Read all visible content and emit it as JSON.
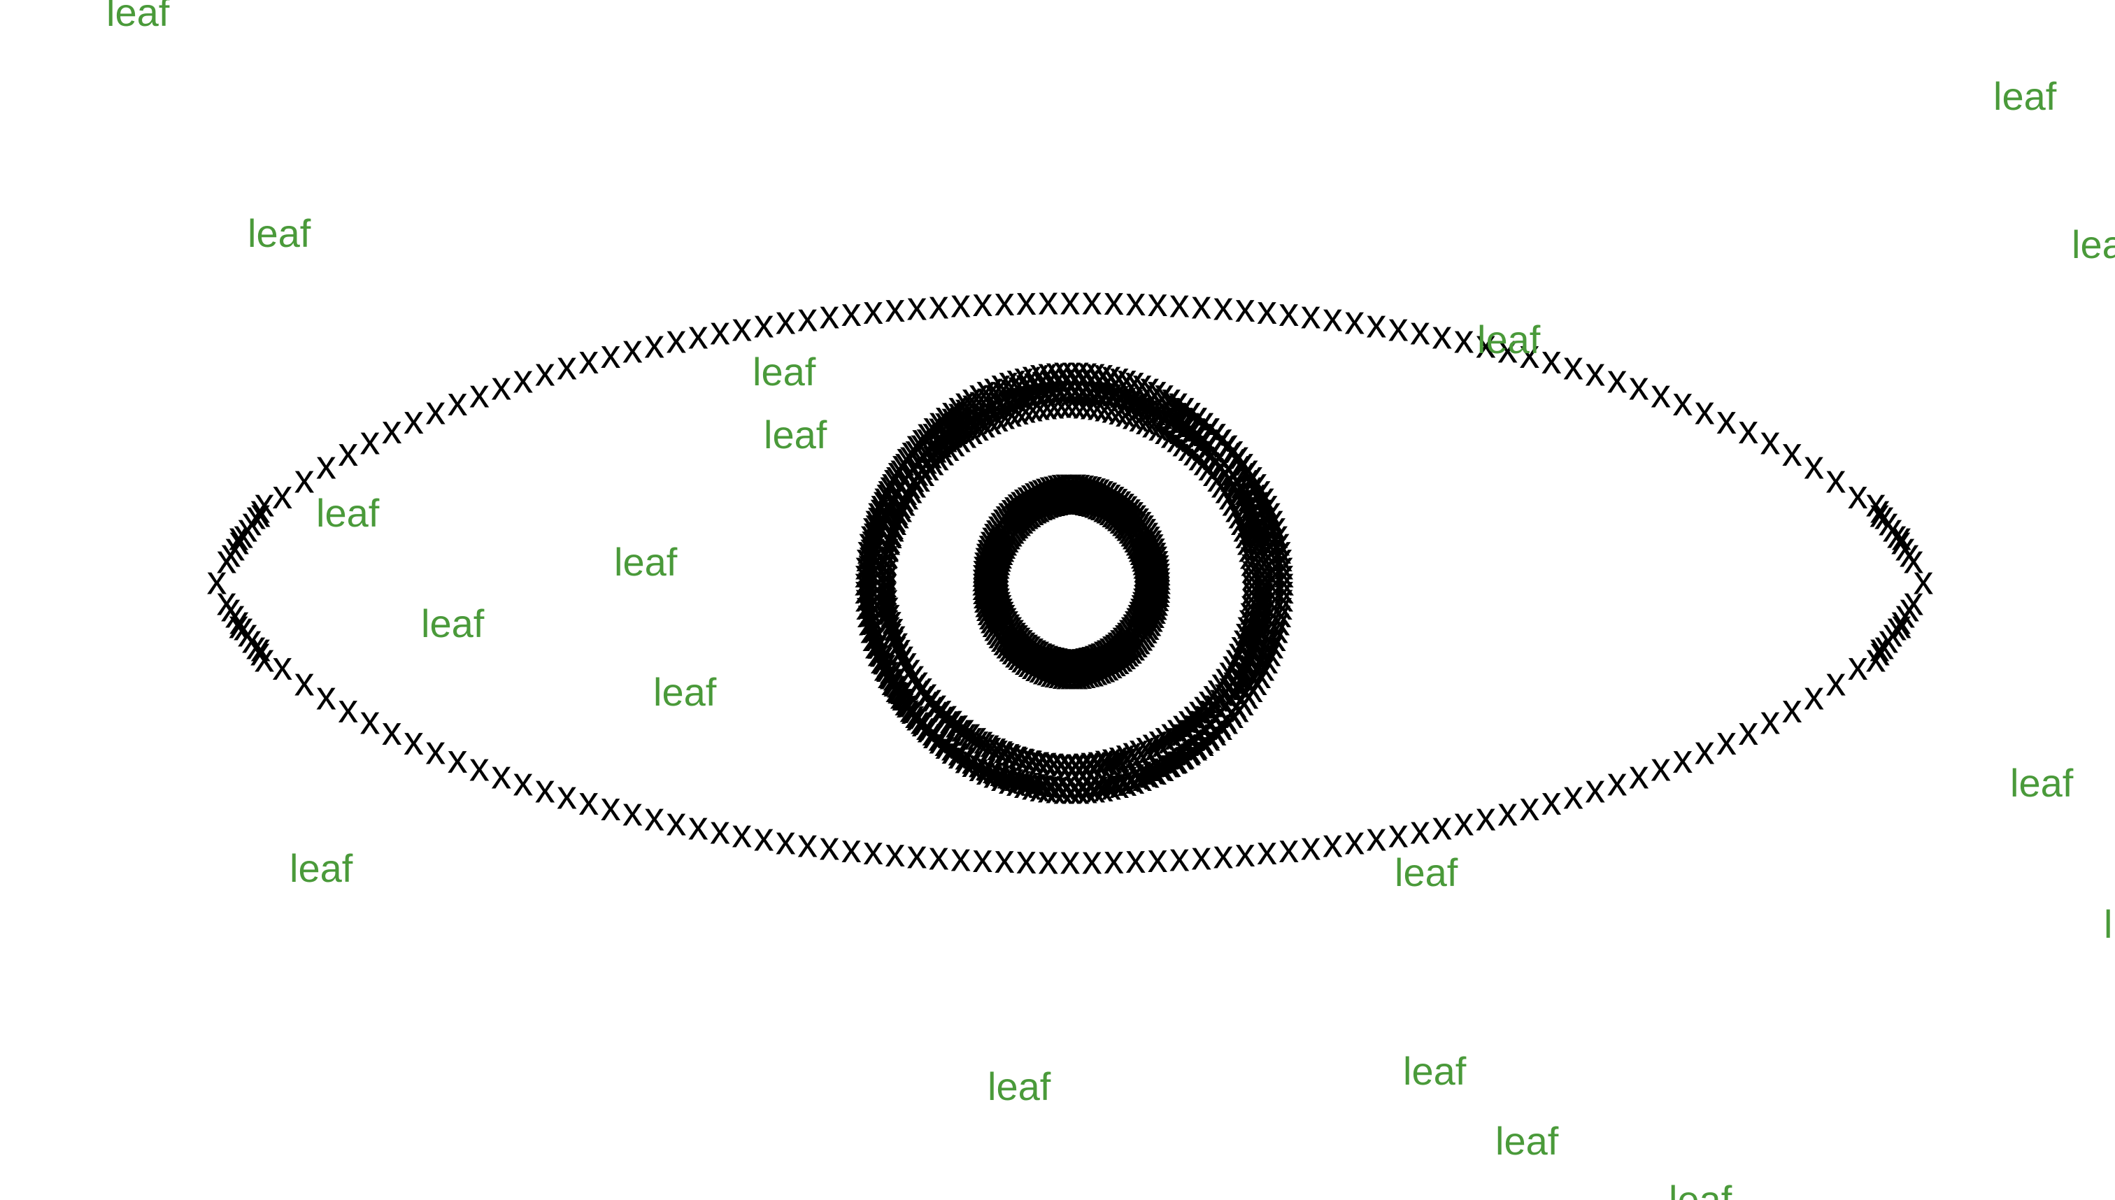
{
  "colors": {
    "background": "#ffffff",
    "x_mark": "#000000",
    "leaf_text": "#4a9a3a"
  },
  "glyphs": {
    "x_mark": "x",
    "leaf": "leaf",
    "leaf_partial_lea": "lea",
    "leaf_partial_l": "l"
  },
  "icons": [
    "eye-outline-x-pattern",
    "iris-rings-x-pattern",
    "pupil-x-pattern"
  ]
}
